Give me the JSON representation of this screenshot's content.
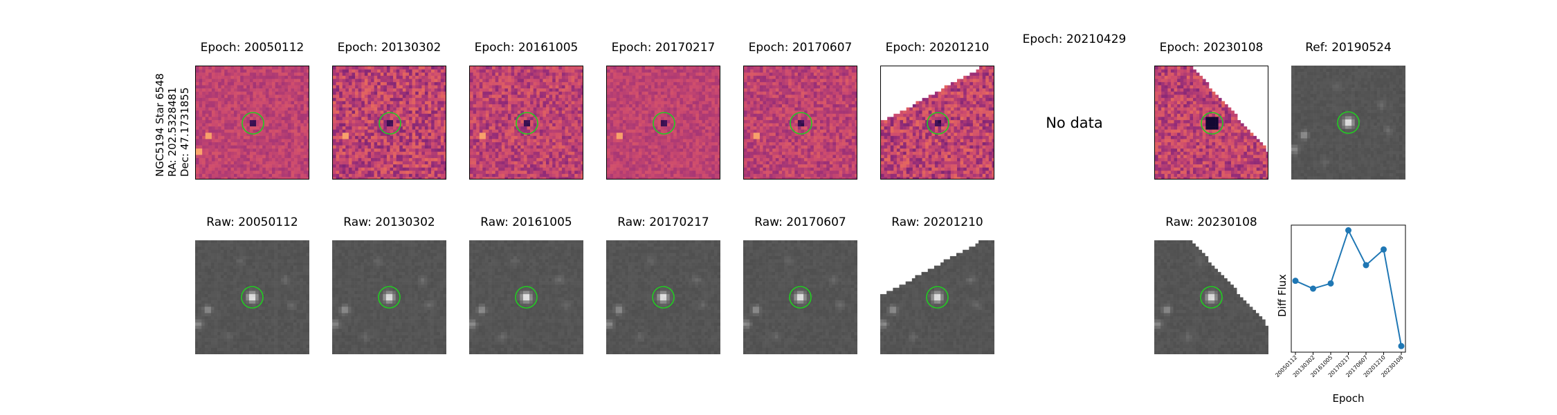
{
  "star": {
    "name": "NGC5194 Star 6548",
    "ra": "RA: 202.5328481",
    "dec": "Dec: 47.1731855"
  },
  "diff_panels": [
    {
      "title": "Epoch: 20050112",
      "variant": 0,
      "cut": "none"
    },
    {
      "title": "Epoch: 20130302",
      "variant": 1,
      "cut": "none"
    },
    {
      "title": "Epoch: 20161005",
      "variant": 2,
      "cut": "none"
    },
    {
      "title": "Epoch: 20170217",
      "variant": 3,
      "cut": "none"
    },
    {
      "title": "Epoch: 20170607",
      "variant": 4,
      "cut": "none"
    },
    {
      "title": "Epoch: 20201210",
      "variant": 5,
      "cut": "topleft"
    },
    {
      "title": "Epoch: 20210429",
      "variant": 6,
      "cut": "nodata",
      "message": "No data"
    },
    {
      "title": "Epoch: 20230108",
      "variant": 7,
      "cut": "topright"
    }
  ],
  "ref_panel": {
    "title": "Ref: 20190524"
  },
  "raw_panels": [
    {
      "title": "Raw: 20050112",
      "cut": "none"
    },
    {
      "title": "Raw: 20130302",
      "cut": "none"
    },
    {
      "title": "Raw: 20161005",
      "cut": "none"
    },
    {
      "title": "Raw: 20170217",
      "cut": "none"
    },
    {
      "title": "Raw: 20170607",
      "cut": "none"
    },
    {
      "title": "Raw: 20201210",
      "cut": "topleft"
    },
    {
      "title": "Raw: 20230108",
      "cut": "topright"
    }
  ],
  "colors": {
    "aperture": "#22cc22",
    "series": "#1f77b4",
    "diff_base": "#c8507a",
    "raw_base": "#545454"
  },
  "chart_data": {
    "type": "line",
    "title": "",
    "xlabel": "Epoch",
    "ylabel": "Diff Flux",
    "categories": [
      "20050112",
      "20130302",
      "20161005",
      "20170217",
      "20170607",
      "20201210",
      "20230108"
    ],
    "values": [
      0.42,
      0.33,
      0.39,
      1.0,
      0.6,
      0.78,
      -0.33
    ],
    "ylim": [
      -0.4,
      1.06
    ],
    "grid": false
  }
}
